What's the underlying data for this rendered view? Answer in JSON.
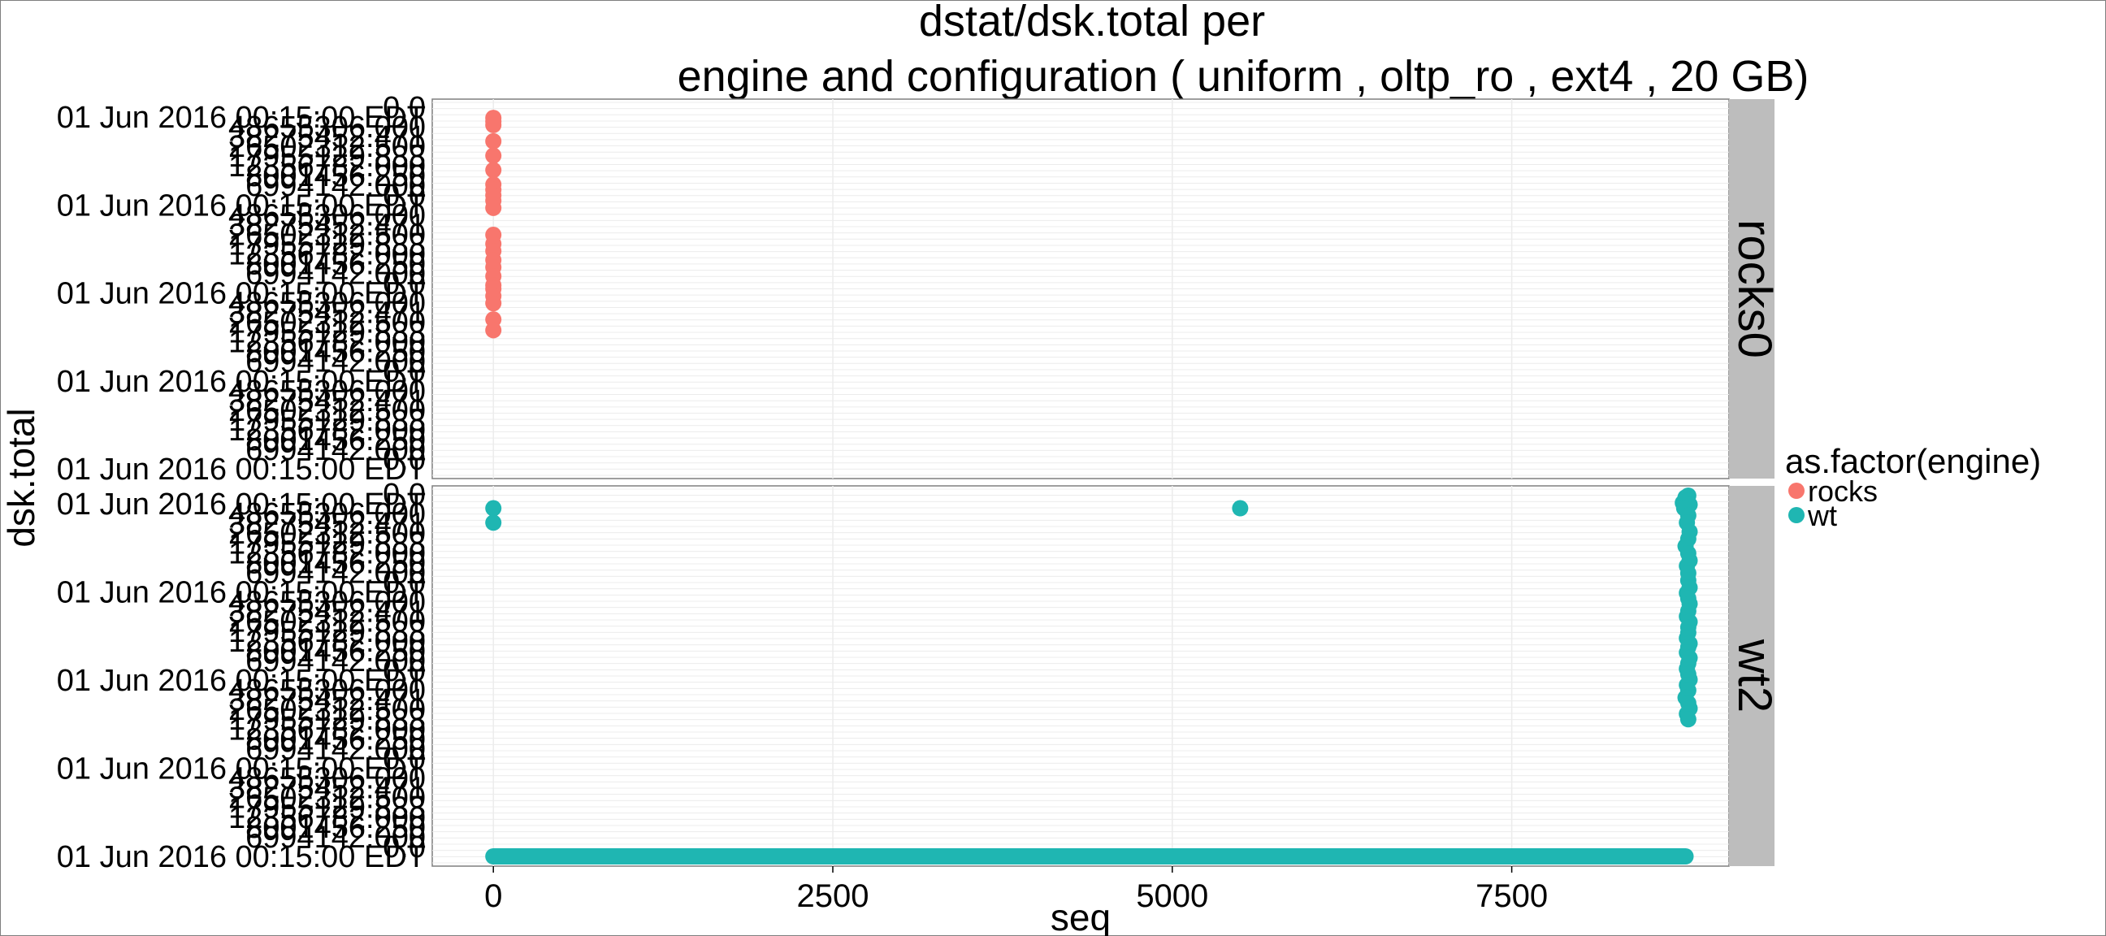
{
  "colors": {
    "rocks": "#F8766D",
    "wt": "#1FB6B2",
    "panel_bg": "#ffffff",
    "strip_bg": "#BDBDBD",
    "grid": "#ECECEC",
    "frame": "#7F7F7F"
  },
  "chart_data": {
    "type": "scatter",
    "title": "dstat/dsk.total per",
    "subtitle": "engine and configuration ( uniform , oltp_ro , ext4 ,  20 GB)",
    "xlabel": "seq",
    "ylabel": "dsk.total",
    "xlim": [
      -450,
      9100
    ],
    "x_ticks": [
      0,
      2500,
      5000,
      7500
    ],
    "x_tick_labels": [
      "0",
      "2500",
      "5000",
      "7500"
    ],
    "y_tick_labels": [
      "0.0",
      "01 Jun 2016 00:15:00 EDT",
      "48655306.000",
      "38275452.471",
      "26502312.500",
      "17955129.833",
      "12356782.000",
      "8001456.250",
      "6994142.000"
    ],
    "facet_layout": "rows",
    "legend": {
      "title": "as.factor(engine)",
      "position": "right",
      "entries": [
        {
          "key": "rocks",
          "label": "rocks"
        },
        {
          "key": "wt",
          "label": "wt"
        }
      ]
    },
    "facets": [
      {
        "label": "rocks0",
        "series": [
          {
            "key": "rocks",
            "x": [
              0,
              0,
              0,
              0,
              0,
              0,
              0,
              0,
              0,
              0,
              0,
              0,
              0,
              0,
              0,
              0,
              0,
              0,
              0,
              0,
              0,
              0,
              0
            ],
            "y": [
              0.95,
              0.93,
              0.91,
              0.82,
              0.74,
              0.66,
              0.58,
              0.55,
              0.52,
              0.49,
              0.45,
              0.3,
              0.25,
              0.21,
              0.16,
              0.12,
              0.07,
              0.02,
              0.0,
              -0.04,
              -0.08,
              -0.17,
              -0.23
            ]
          }
        ]
      },
      {
        "label": "wt2",
        "series": [
          {
            "key": "wt",
            "x": [
              0,
              0,
              5500,
              8760,
              8780,
              8800,
              8790,
              8810,
              8770,
              8800,
              8790,
              8810,
              8800,
              8780,
              8800,
              8810,
              8790,
              8800,
              8800,
              8810,
              8790,
              8800,
              8810,
              8800,
              8790,
              8810,
              8800,
              8800,
              8790,
              8810,
              8800,
              8790,
              8810,
              8800,
              8790,
              8800,
              8810,
              8790,
              8800,
              8780,
              8800,
              8810,
              8790,
              8800
            ],
            "y": [
              0.93,
              0.85,
              0.93,
              0.96,
              0.99,
              1.0,
              0.97,
              0.95,
              0.93,
              0.89,
              0.85,
              0.8,
              0.76,
              0.72,
              0.68,
              0.64,
              0.61,
              0.57,
              0.53,
              0.49,
              0.46,
              0.43,
              0.4,
              0.36,
              0.33,
              0.3,
              0.27,
              0.24,
              0.21,
              0.18,
              0.16,
              0.13,
              0.1,
              0.07,
              0.04,
              0.01,
              -0.02,
              -0.05,
              -0.08,
              -0.12,
              -0.15,
              -0.18,
              -0.21,
              -0.24
            ]
          }
        ],
        "baseline": {
          "key": "wt",
          "x_start": 0,
          "x_end": 8780,
          "y": -1.0
        }
      }
    ]
  }
}
